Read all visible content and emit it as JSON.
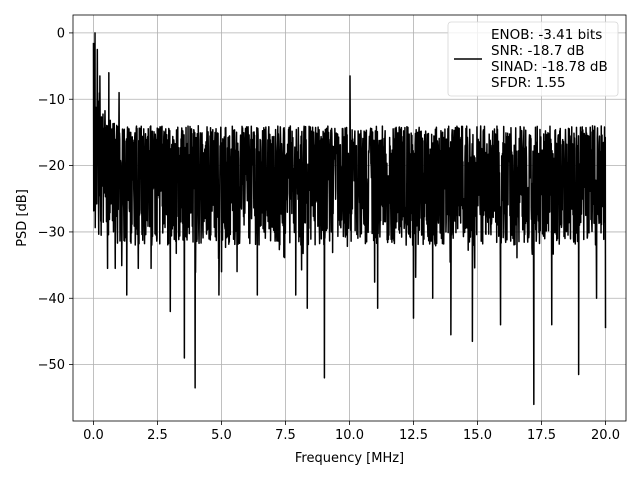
{
  "chart_data": {
    "type": "line",
    "title": "",
    "xlabel": "Frequency [MHz]",
    "ylabel": "PSD [dB]",
    "xlim": [
      -0.8,
      20.8
    ],
    "ylim": [
      -58.5,
      2.7
    ],
    "x_ticks": [
      0.0,
      2.5,
      5.0,
      7.5,
      10.0,
      12.5,
      15.0,
      17.5,
      20.0
    ],
    "x_tick_labels": [
      "0.0",
      "2.5",
      "5.0",
      "7.5",
      "10.0",
      "12.5",
      "15.0",
      "17.5",
      "20.0"
    ],
    "y_ticks": [
      0,
      -10,
      -20,
      -30,
      -40,
      -50
    ],
    "y_tick_labels": [
      "0",
      "−10",
      "−20",
      "−30",
      "−40",
      "−50"
    ],
    "grid": true,
    "legend_position": "top-right",
    "series": [
      {
        "legend_lines": [
          "ENOB: -3.41 bits",
          "SNR: -18.7 dB",
          "SINAD: -18.78 dB",
          "SFDR: 1.55"
        ],
        "color": "#000000",
        "x_range": [
          0.0,
          20.0
        ],
        "num_points": 2048,
        "noise_floor_db": -21,
        "upper_envelope_db": -14,
        "lower_envelope_db": -32,
        "key_points": [
          {
            "x": 0.0,
            "y": -1.5
          },
          {
            "x": 0.06,
            "y": 0.0
          },
          {
            "x": 0.1,
            "y": -21.0
          },
          {
            "x": 0.15,
            "y": -2.5
          },
          {
            "x": 0.25,
            "y": -6.5
          },
          {
            "x": 0.3,
            "y": -30.5
          },
          {
            "x": 0.55,
            "y": -35.5
          },
          {
            "x": 0.6,
            "y": -6.0
          },
          {
            "x": 0.85,
            "y": -35.5
          },
          {
            "x": 1.0,
            "y": -9.0
          },
          {
            "x": 1.3,
            "y": -39.5
          },
          {
            "x": 1.75,
            "y": -35.5
          },
          {
            "x": 2.25,
            "y": -35.5
          },
          {
            "x": 3.0,
            "y": -42.0
          },
          {
            "x": 3.55,
            "y": -49.0
          },
          {
            "x": 3.97,
            "y": -53.5
          },
          {
            "x": 4.9,
            "y": -39.5
          },
          {
            "x": 6.4,
            "y": -39.5
          },
          {
            "x": 7.9,
            "y": -39.5
          },
          {
            "x": 8.35,
            "y": -41.5
          },
          {
            "x": 9.02,
            "y": -52.0
          },
          {
            "x": 10.02,
            "y": -6.5
          },
          {
            "x": 11.1,
            "y": -41.5
          },
          {
            "x": 12.5,
            "y": -43.0
          },
          {
            "x": 13.25,
            "y": -40.0
          },
          {
            "x": 13.96,
            "y": -45.5
          },
          {
            "x": 14.8,
            "y": -46.5
          },
          {
            "x": 15.9,
            "y": -44.0
          },
          {
            "x": 17.2,
            "y": -56.0
          },
          {
            "x": 17.9,
            "y": -44.0
          },
          {
            "x": 18.95,
            "y": -51.5
          },
          {
            "x": 19.65,
            "y": -40.0
          },
          {
            "x": 20.0,
            "y": -44.5
          }
        ]
      }
    ]
  }
}
